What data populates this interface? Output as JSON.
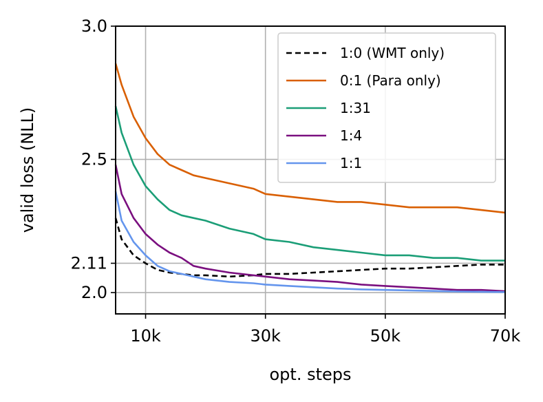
{
  "chart_data": {
    "type": "line",
    "title": "",
    "xlabel": "opt. steps",
    "ylabel": "valid loss (NLL)",
    "xlim": [
      5000,
      70000
    ],
    "ylim": [
      1.92,
      3.0
    ],
    "grid": true,
    "legend_position": "top-right",
    "x_ticks": [
      {
        "value": 10000,
        "label": "10k"
      },
      {
        "value": 30000,
        "label": "30k"
      },
      {
        "value": 50000,
        "label": "50k"
      },
      {
        "value": 70000,
        "label": "70k"
      }
    ],
    "y_ticks": [
      {
        "value": 2.0,
        "label": "2.0"
      },
      {
        "value": 2.11,
        "label": "2.11"
      },
      {
        "value": 2.5,
        "label": "2.5"
      },
      {
        "value": 3.0,
        "label": "3.0"
      }
    ],
    "x": [
      5000,
      6000,
      8000,
      10000,
      12000,
      14000,
      16000,
      18000,
      20000,
      24000,
      28000,
      30000,
      34000,
      38000,
      42000,
      46000,
      50000,
      54000,
      58000,
      62000,
      66000,
      70000
    ],
    "series": [
      {
        "name": "1:0 (WMT only)",
        "color": "#000000",
        "dash": "8,5",
        "values": [
          2.28,
          2.2,
          2.14,
          2.11,
          2.085,
          2.075,
          2.07,
          2.065,
          2.065,
          2.06,
          2.065,
          2.07,
          2.07,
          2.075,
          2.08,
          2.085,
          2.09,
          2.09,
          2.095,
          2.1,
          2.105,
          2.105
        ]
      },
      {
        "name": "0:1 (Para only)",
        "color": "#d95f02",
        "dash": "",
        "values": [
          2.86,
          2.78,
          2.66,
          2.58,
          2.52,
          2.48,
          2.46,
          2.44,
          2.43,
          2.41,
          2.39,
          2.37,
          2.36,
          2.35,
          2.34,
          2.34,
          2.33,
          2.32,
          2.32,
          2.32,
          2.31,
          2.3
        ]
      },
      {
        "name": "1:31",
        "color": "#1b9e77",
        "dash": "",
        "values": [
          2.7,
          2.6,
          2.48,
          2.4,
          2.35,
          2.31,
          2.29,
          2.28,
          2.27,
          2.24,
          2.22,
          2.2,
          2.19,
          2.17,
          2.16,
          2.15,
          2.14,
          2.14,
          2.13,
          2.13,
          2.12,
          2.12
        ]
      },
      {
        "name": "1:4",
        "color": "#7a0f7f",
        "dash": "",
        "values": [
          2.48,
          2.37,
          2.28,
          2.22,
          2.18,
          2.15,
          2.13,
          2.1,
          2.09,
          2.075,
          2.065,
          2.06,
          2.05,
          2.045,
          2.04,
          2.03,
          2.025,
          2.02,
          2.015,
          2.01,
          2.01,
          2.005
        ]
      },
      {
        "name": "1:1",
        "color": "#6495ed",
        "dash": "",
        "values": [
          2.38,
          2.27,
          2.19,
          2.14,
          2.1,
          2.08,
          2.07,
          2.06,
          2.05,
          2.04,
          2.035,
          2.03,
          2.025,
          2.02,
          2.015,
          2.012,
          2.01,
          2.008,
          2.006,
          2.004,
          2.003,
          2.002
        ]
      }
    ]
  }
}
